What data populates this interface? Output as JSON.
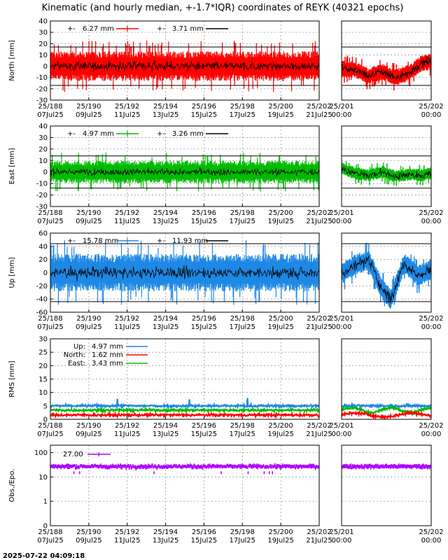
{
  "title": "Kinematic (and hourly median, +-1.7*IQR) coordinates of REYK (40321 epochs)",
  "timestamp": "2025-07-22 04:09:18",
  "colors": {
    "north": "#ff0000",
    "east": "#00bb00",
    "up": "#1e88e5",
    "obs": "#b000ff",
    "median": "#000000",
    "grid": "#999999"
  },
  "x_main": {
    "range": [
      188,
      202
    ],
    "ticks": [
      {
        "v": 188,
        "l1": "25/188",
        "l2": "07Jul25"
      },
      {
        "v": 190,
        "l1": "25/190",
        "l2": "09Jul25"
      },
      {
        "v": 192,
        "l1": "25/192",
        "l2": "11Jul25"
      },
      {
        "v": 194,
        "l1": "25/194",
        "l2": "13Jul25"
      },
      {
        "v": 196,
        "l1": "25/196",
        "l2": "15Jul25"
      },
      {
        "v": 198,
        "l1": "25/198",
        "l2": "17Jul25"
      },
      {
        "v": 200,
        "l1": "25/200",
        "l2": "19Jul25"
      },
      {
        "v": 202,
        "l1": "25/202",
        "l2": "21Jul25"
      }
    ]
  },
  "x_zoom": {
    "range": [
      201,
      202
    ],
    "ticks": [
      {
        "v": 201,
        "l1": "25/201",
        "l2": "00:00"
      },
      {
        "v": 202,
        "l1": "25/202",
        "l2": "00:00"
      }
    ]
  },
  "chart_data": [
    {
      "type": "scatter",
      "key": "north",
      "ylabel": "North [mm]",
      "ylim": [
        -30,
        40
      ],
      "yticks": [
        -30,
        -20,
        -10,
        0,
        10,
        20,
        30,
        40
      ],
      "limit_lines": [
        17,
        -17
      ],
      "legend": [
        {
          "value": "6.27 mm",
          "color": "north"
        },
        {
          "value": "3.71 mm",
          "color": "median"
        }
      ],
      "series": {
        "center": 0,
        "scatter_halfwidth": 12,
        "zoom_profile": [
          [
            201,
            -2
          ],
          [
            201.15,
            -3
          ],
          [
            201.3,
            -9
          ],
          [
            201.45,
            -5
          ],
          [
            201.6,
            -10
          ],
          [
            201.75,
            -6
          ],
          [
            201.9,
            3
          ],
          [
            202,
            4
          ]
        ]
      }
    },
    {
      "type": "scatter",
      "key": "east",
      "ylabel": "East [mm]",
      "ylim": [
        -30,
        40
      ],
      "yticks": [
        -30,
        -20,
        -10,
        0,
        10,
        20,
        30,
        40
      ],
      "limit_lines": [
        14,
        -14
      ],
      "legend": [
        {
          "value": "4.97 mm",
          "color": "east"
        },
        {
          "value": "3.26 mm",
          "color": "median"
        }
      ],
      "series": {
        "center": 0,
        "scatter_halfwidth": 9,
        "zoom_profile": [
          [
            201,
            3
          ],
          [
            201.15,
            -1
          ],
          [
            201.3,
            -3
          ],
          [
            201.45,
            0
          ],
          [
            201.6,
            -4
          ],
          [
            201.75,
            -2
          ],
          [
            201.9,
            -3
          ],
          [
            202,
            -1
          ]
        ]
      }
    },
    {
      "type": "scatter",
      "key": "up",
      "ylabel": "Up [mm]",
      "ylim": [
        -60,
        60
      ],
      "yticks": [
        -60,
        -40,
        -20,
        0,
        20,
        40,
        60
      ],
      "limit_lines": [
        44,
        -44
      ],
      "legend": [
        {
          "value": "15.78 mm",
          "color": "up"
        },
        {
          "value": "11.93 mm",
          "color": "median"
        }
      ],
      "series": {
        "center": 0,
        "scatter_halfwidth": 26,
        "zoom_profile": [
          [
            201,
            -2
          ],
          [
            201.15,
            12
          ],
          [
            201.3,
            20
          ],
          [
            201.45,
            -25
          ],
          [
            201.55,
            -40
          ],
          [
            201.7,
            15
          ],
          [
            201.85,
            -5
          ],
          [
            202,
            5
          ]
        ]
      }
    },
    {
      "type": "line",
      "key": "rms",
      "ylabel": "RMS [mm]",
      "ylim": [
        0,
        30
      ],
      "yticks": [
        0,
        5,
        10,
        15,
        20,
        25,
        30
      ],
      "legend": [
        {
          "name": "Up:",
          "value": "4.97 mm",
          "color": "up"
        },
        {
          "name": "North:",
          "value": "1.62 mm",
          "color": "north"
        },
        {
          "name": "East:",
          "value": "3.43 mm",
          "color": "east"
        }
      ],
      "series": [
        {
          "key": "up",
          "center": 5
        },
        {
          "key": "east",
          "center": 3.4
        },
        {
          "key": "north",
          "center": 1.6
        }
      ]
    },
    {
      "type": "scatter",
      "key": "obs",
      "ylabel": "Obs./Epo.",
      "yscale": "log",
      "ylim": [
        0.1,
        200
      ],
      "yticks": [
        {
          "v": 0.1,
          "l": "0"
        },
        {
          "v": 1,
          "l": "1"
        },
        {
          "v": 10,
          "l": "10"
        },
        {
          "v": 100,
          "l": "100"
        }
      ],
      "legend": [
        {
          "value": "27.00",
          "color": "obs"
        }
      ],
      "series": {
        "center": 27
      }
    }
  ]
}
